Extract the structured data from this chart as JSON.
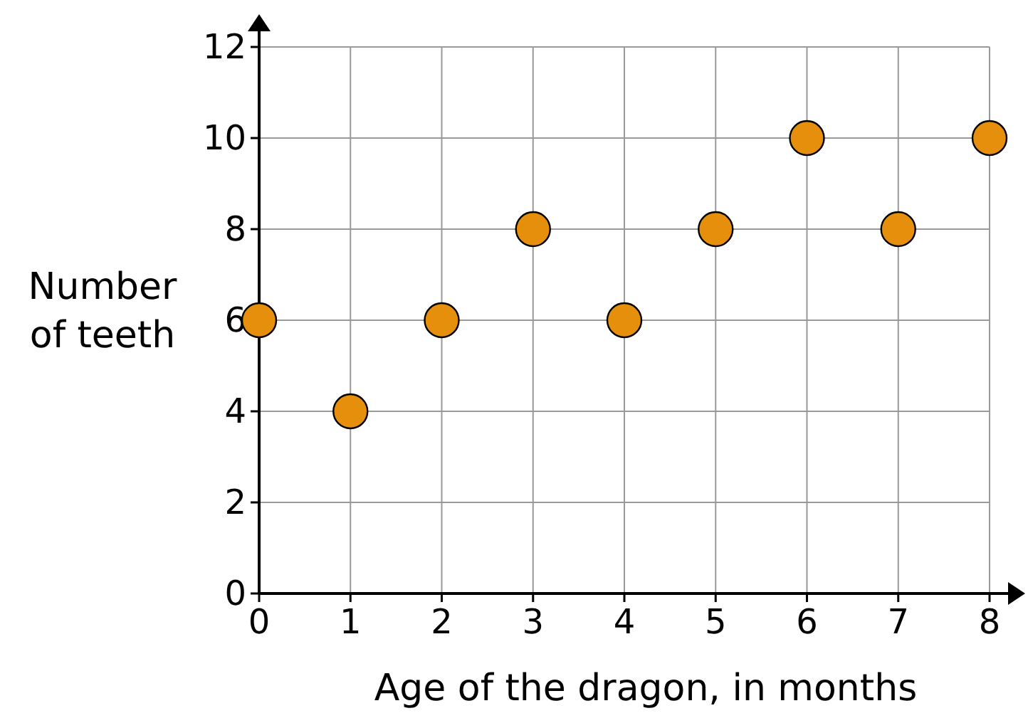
{
  "chart_data": {
    "type": "scatter",
    "xlabel": "Age of the dragon, in months",
    "ylabel": "Number of teeth",
    "x": [
      0,
      1,
      2,
      3,
      4,
      5,
      6,
      7,
      8
    ],
    "values": [
      6,
      4,
      6,
      8,
      6,
      8,
      10,
      8,
      10
    ],
    "color": "#e58f0c",
    "marker": "circle",
    "xlim": [
      0,
      8
    ],
    "ylim": [
      0,
      12
    ],
    "xticks": [
      0,
      1,
      2,
      3,
      4,
      5,
      6,
      7,
      8
    ],
    "yticks": [
      0,
      2,
      4,
      6,
      8,
      10,
      12
    ],
    "grid": true
  }
}
